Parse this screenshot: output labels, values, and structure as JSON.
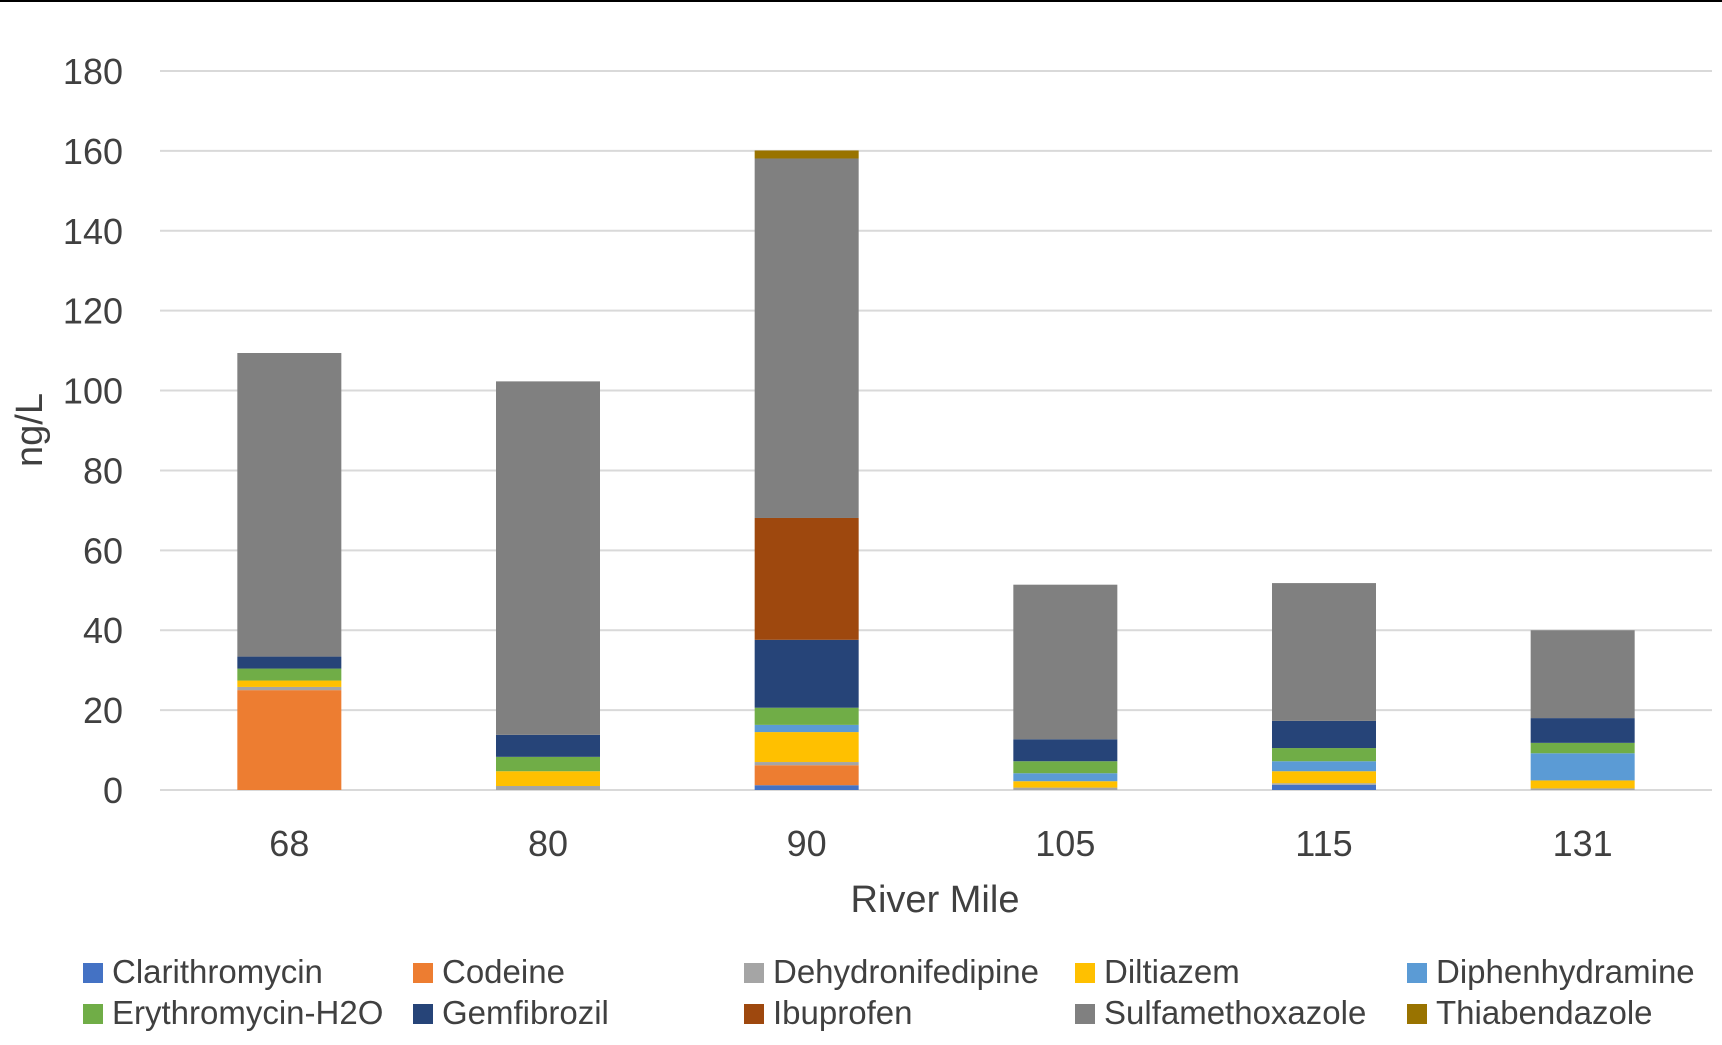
{
  "chart_data": {
    "type": "bar",
    "stacked": true,
    "title": "",
    "xlabel": "River Mile",
    "ylabel": "ng/L",
    "ylim": [
      0,
      180
    ],
    "yticks": [
      0,
      20,
      40,
      60,
      80,
      100,
      120,
      140,
      160,
      180
    ],
    "grid": true,
    "legend_position": "bottom",
    "categories": [
      "68",
      "80",
      "90",
      "105",
      "115",
      "131"
    ],
    "series": [
      {
        "name": "Clarithromycin",
        "color": "#4472C4",
        "values": [
          0,
          0,
          1.2,
          0,
          1.3,
          0
        ]
      },
      {
        "name": "Codeine",
        "color": "#ED7D31",
        "values": [
          25,
          0,
          5,
          0,
          0,
          0
        ]
      },
      {
        "name": "Dehydronifedipine",
        "color": "#A5A5A5",
        "values": [
          0.8,
          1,
          0.8,
          0.6,
          0.4,
          0.4
        ]
      },
      {
        "name": "Diltiazem",
        "color": "#FFC000",
        "values": [
          1.6,
          3.7,
          7.5,
          1.6,
          3,
          2
        ]
      },
      {
        "name": "Diphenhydramine",
        "color": "#5B9BD5",
        "values": [
          0,
          0,
          1.8,
          2,
          2.5,
          6.8
        ]
      },
      {
        "name": "Erythromycin-H2O",
        "color": "#70AD47",
        "values": [
          3,
          3.6,
          4.3,
          3,
          3.3,
          2.6
        ]
      },
      {
        "name": "Gemfibrozil",
        "color": "#264478",
        "values": [
          3,
          5.5,
          17,
          5.5,
          6.8,
          6.2
        ]
      },
      {
        "name": "Ibuprofen",
        "color": "#9E480E",
        "values": [
          0,
          0,
          30.5,
          0,
          0,
          0
        ]
      },
      {
        "name": "Sulfamethoxazole",
        "color": "#808080",
        "values": [
          76,
          88.5,
          90,
          38.7,
          34.5,
          22
        ]
      },
      {
        "name": "Thiabendazole",
        "color": "#997300",
        "values": [
          0,
          0,
          2,
          0,
          0,
          0
        ]
      }
    ]
  }
}
